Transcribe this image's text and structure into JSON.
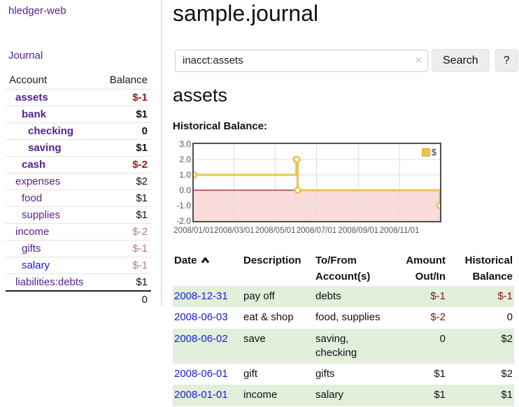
{
  "colors": {
    "purple": "#54228f",
    "blue": "#1a1ad9",
    "negstrong": "#9c1414",
    "negmuted": "#bf7676",
    "green": "#e1efdb",
    "gold": "#e9c44e",
    "pink": "#fcdbdb",
    "zero": "#8b1a1a"
  },
  "sidebar": {
    "app_title": "hledger-web",
    "journal_label": "Journal",
    "accounts_table": {
      "headers": {
        "account": "Account",
        "balance": "Balance"
      },
      "rows": [
        {
          "name": "assets",
          "indent": 1,
          "bold": true,
          "balance": "$-1",
          "balance_style": "negstrong"
        },
        {
          "name": "bank",
          "indent": 2,
          "bold": true,
          "balance": "$1",
          "balance_style": "normal"
        },
        {
          "name": "checking",
          "indent": 3,
          "bold": true,
          "balance": "0",
          "balance_style": "normal"
        },
        {
          "name": "saving",
          "indent": 3,
          "bold": true,
          "balance": "$1",
          "balance_style": "normal"
        },
        {
          "name": "cash",
          "indent": 2,
          "bold": true,
          "balance": "$-2",
          "balance_style": "negstrong"
        },
        {
          "name": "expenses",
          "indent": 1,
          "bold": false,
          "balance": "$2",
          "balance_style": "normal"
        },
        {
          "name": "food",
          "indent": 2,
          "bold": false,
          "balance": "$1",
          "balance_style": "normal"
        },
        {
          "name": "supplies",
          "indent": 2,
          "bold": false,
          "balance": "$1",
          "balance_style": "normal"
        },
        {
          "name": "income",
          "indent": 1,
          "bold": false,
          "balance": "$-2",
          "balance_style": "negmuted"
        },
        {
          "name": "gifts",
          "indent": 2,
          "bold": false,
          "balance": "$-1",
          "balance_style": "negmuted"
        },
        {
          "name": "salary",
          "indent": 2,
          "bold": false,
          "link_color": "blue",
          "balance": "$-1",
          "balance_style": "negmuted"
        },
        {
          "name": "liabilities:debts",
          "indent": 1,
          "bold": false,
          "balance": "$1",
          "balance_style": "normal"
        }
      ],
      "total": "0"
    }
  },
  "header": {
    "title": "sample.journal"
  },
  "search": {
    "value": "inacct:assets",
    "clear_icon": "×",
    "button_label": "Search",
    "help_label": "?"
  },
  "account_page": {
    "heading": "assets",
    "chart_label": "Historical Balance:"
  },
  "chart_data": {
    "type": "line",
    "subtype": "step",
    "title": "Historical Balance",
    "x_range": [
      "2008-01-01",
      "2008-12-31"
    ],
    "ylim": [
      -2,
      3
    ],
    "yticks": [
      3.0,
      2.0,
      1.0,
      0.0,
      -1.0,
      -2.0
    ],
    "xticks": [
      {
        "date": "2008-01-01",
        "label": "2008/01/01"
      },
      {
        "date": "2008-03-01",
        "label": "2008/03/01"
      },
      {
        "date": "2008-05-01",
        "label": "2008/05/01"
      },
      {
        "date": "2008-07-01",
        "label": "2008/07/01"
      },
      {
        "date": "2008-09-01",
        "label": "2008/09/01"
      },
      {
        "date": "2008-11-01",
        "label": "2008/11/01"
      }
    ],
    "series": [
      {
        "name": "$",
        "points": [
          [
            "2008-01-01",
            1
          ],
          [
            "2008-06-01",
            2
          ],
          [
            "2008-06-02",
            2
          ],
          [
            "2008-06-03",
            0
          ],
          [
            "2008-12-31",
            -1
          ]
        ]
      }
    ],
    "legend_position": "top-right",
    "grid": true,
    "negative_region_shaded": true
  },
  "transactions_table": {
    "headers": {
      "date": "Date",
      "description": "Description",
      "accounts": "To/From Account(s)",
      "amount": "Amount Out/In",
      "balance": "Historical Balance"
    },
    "rows": [
      {
        "date": "2008-12-31",
        "description": "pay off",
        "accounts": "debts",
        "amount": "$-1",
        "amount_neg": true,
        "balance": "$-1",
        "balance_neg": true,
        "shaded": true
      },
      {
        "date": "2008-06-03",
        "description": "eat & shop",
        "accounts": "food, supplies",
        "amount": "$-2",
        "amount_neg": true,
        "balance": "0",
        "balance_neg": false,
        "shaded": false
      },
      {
        "date": "2008-06-02",
        "description": "save",
        "accounts": "saving, checking",
        "amount": "0",
        "amount_neg": false,
        "balance": "$2",
        "balance_neg": false,
        "shaded": true
      },
      {
        "date": "2008-06-01",
        "description": "gift",
        "accounts": "gifts",
        "amount": "$1",
        "amount_neg": false,
        "balance": "$2",
        "balance_neg": false,
        "shaded": false
      },
      {
        "date": "2008-01-01",
        "description": "income",
        "accounts": "salary",
        "amount": "$1",
        "amount_neg": false,
        "balance": "$1",
        "balance_neg": false,
        "shaded": true
      }
    ]
  }
}
